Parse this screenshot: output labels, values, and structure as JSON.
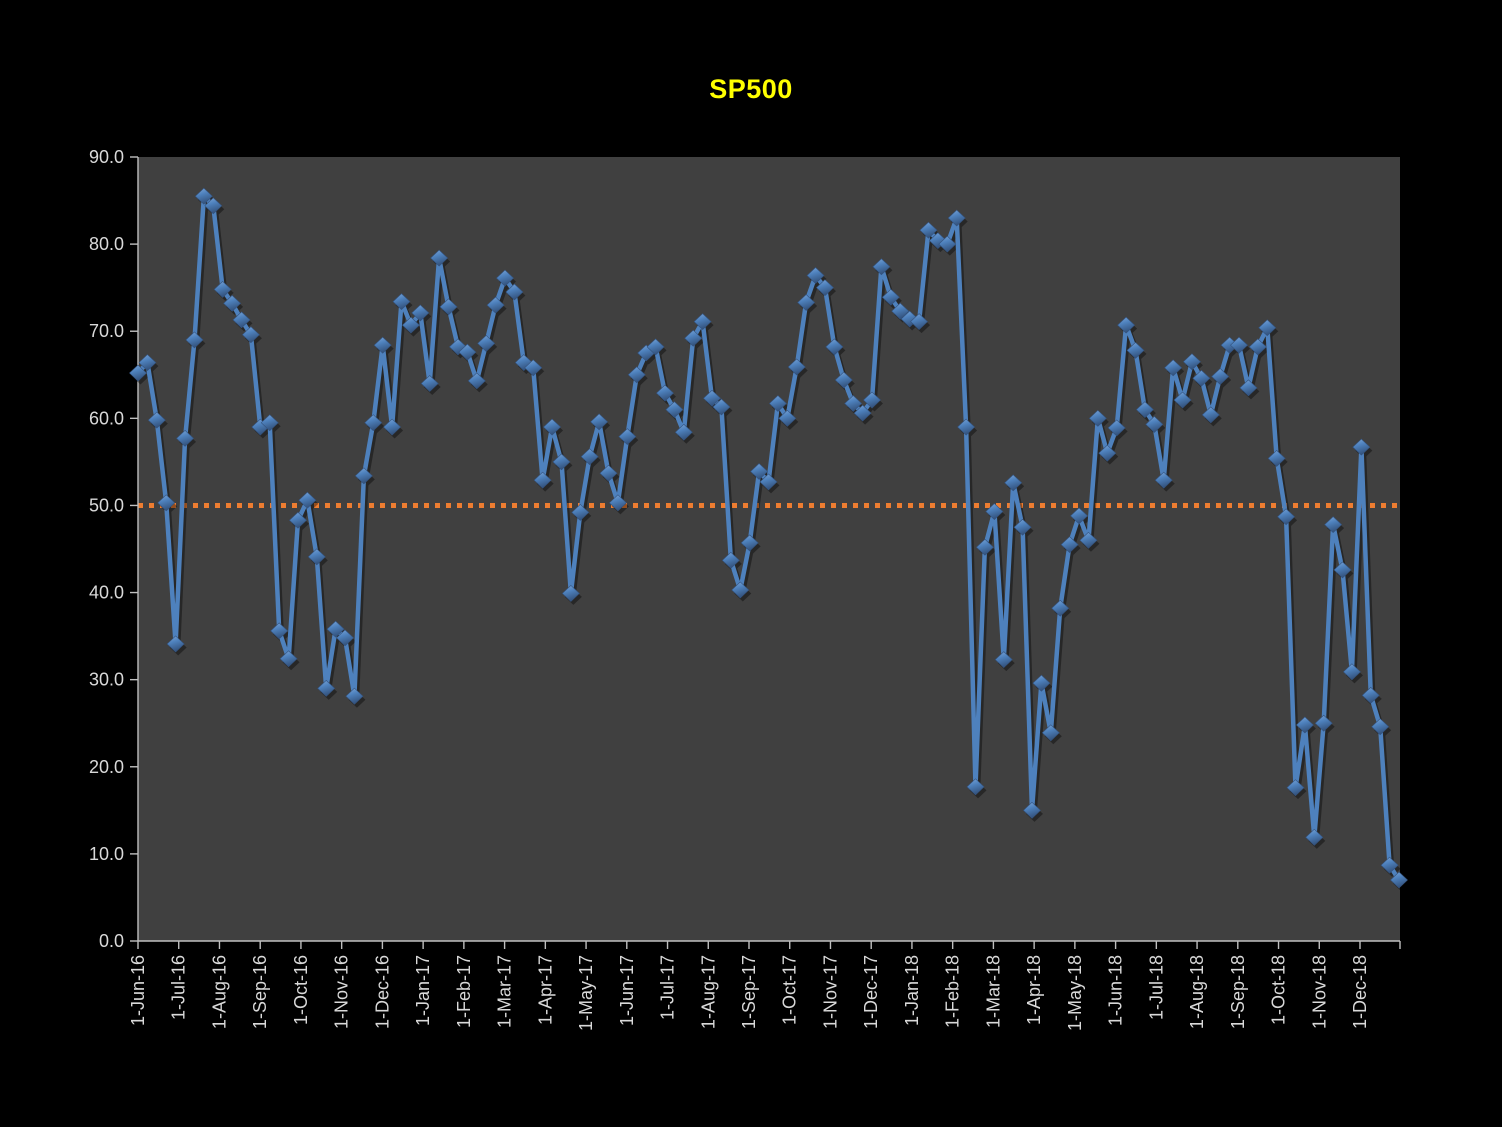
{
  "title": "SP500",
  "chart_data": {
    "type": "line",
    "title": "SP500",
    "xlabel": "",
    "ylabel": "",
    "ylim": [
      0,
      90
    ],
    "grid": "off",
    "legend": "none",
    "y_tick_labels": [
      "0.0",
      "10.0",
      "20.0",
      "30.0",
      "40.0",
      "50.0",
      "60.0",
      "70.0",
      "80.0",
      "90.0"
    ],
    "x_tick_labels": [
      "1-Jun-16",
      "1-Jul-16",
      "1-Aug-16",
      "1-Sep-16",
      "1-Oct-16",
      "1-Nov-16",
      "1-Dec-16",
      "1-Jan-17",
      "1-Feb-17",
      "1-Mar-17",
      "1-Apr-17",
      "1-May-17",
      "1-Jun-17",
      "1-Jul-17",
      "1-Aug-17",
      "1-Sep-17",
      "1-Oct-17",
      "1-Nov-17",
      "1-Dec-17",
      "1-Jan-18",
      "1-Feb-18",
      "1-Mar-18",
      "1-Apr-18",
      "1-May-18",
      "1-Jun-18",
      "1-Jul-18",
      "1-Aug-18",
      "1-Sep-18",
      "1-Oct-18",
      "1-Nov-18",
      "1-Dec-18"
    ],
    "series": [
      {
        "name": "SP500",
        "frequency": "weekly",
        "values": [
          65.2,
          66.4,
          59.8,
          50.3,
          34.1,
          57.7,
          69.0,
          85.5,
          84.4,
          74.8,
          73.2,
          71.3,
          69.6,
          59.0,
          59.5,
          35.6,
          32.4,
          48.3,
          50.6,
          44.1,
          29.0,
          35.8,
          34.8,
          28.1,
          53.4,
          59.5,
          68.4,
          59.0,
          73.4,
          70.7,
          72.1,
          64.0,
          78.4,
          72.8,
          68.2,
          67.6,
          64.3,
          68.6,
          73.0,
          76.1,
          74.5,
          66.4,
          65.8,
          52.9,
          59.0,
          55.0,
          39.9,
          49.2,
          55.6,
          59.6,
          53.7,
          50.3,
          57.9,
          65.0,
          67.5,
          68.2,
          62.9,
          61.0,
          58.4,
          69.2,
          71.1,
          62.3,
          61.3,
          43.7,
          40.3,
          45.7,
          53.9,
          52.7,
          61.7,
          60.0,
          65.9,
          73.3,
          76.4,
          75.0,
          68.2,
          64.4,
          61.7,
          60.6,
          62.1,
          77.4,
          73.9,
          72.3,
          71.4,
          71.1,
          81.6,
          80.4,
          80.0,
          83.0,
          59.0,
          17.7,
          45.2,
          49.3,
          32.3,
          52.6,
          47.5,
          15.0,
          29.6,
          23.9,
          38.2,
          45.5,
          48.8,
          46.0,
          60.0,
          56.0,
          58.9,
          70.7,
          67.8,
          61.0,
          59.3,
          52.9,
          65.8,
          62.1,
          66.5,
          64.6,
          60.4,
          64.8,
          68.4,
          68.4,
          63.5,
          68.2,
          70.4,
          55.4,
          48.7,
          17.6,
          24.8,
          11.9,
          25.0,
          47.8,
          42.6,
          30.9,
          56.7,
          28.2,
          24.6,
          8.7,
          7.0
        ]
      }
    ],
    "reference_line": {
      "value": 50.0,
      "style": "dotted"
    },
    "colors": {
      "background": "#000000",
      "plot_background": "#404040",
      "series_line": "#4E81BD",
      "marker_light": "#7FA8D9",
      "marker_dark": "#34537E",
      "reference_line": "#ED7D31",
      "axis": "#BFBFBF",
      "tick_label": "#D9D9D9",
      "title": "#FFFF00"
    },
    "marker": "diamond-3d"
  }
}
